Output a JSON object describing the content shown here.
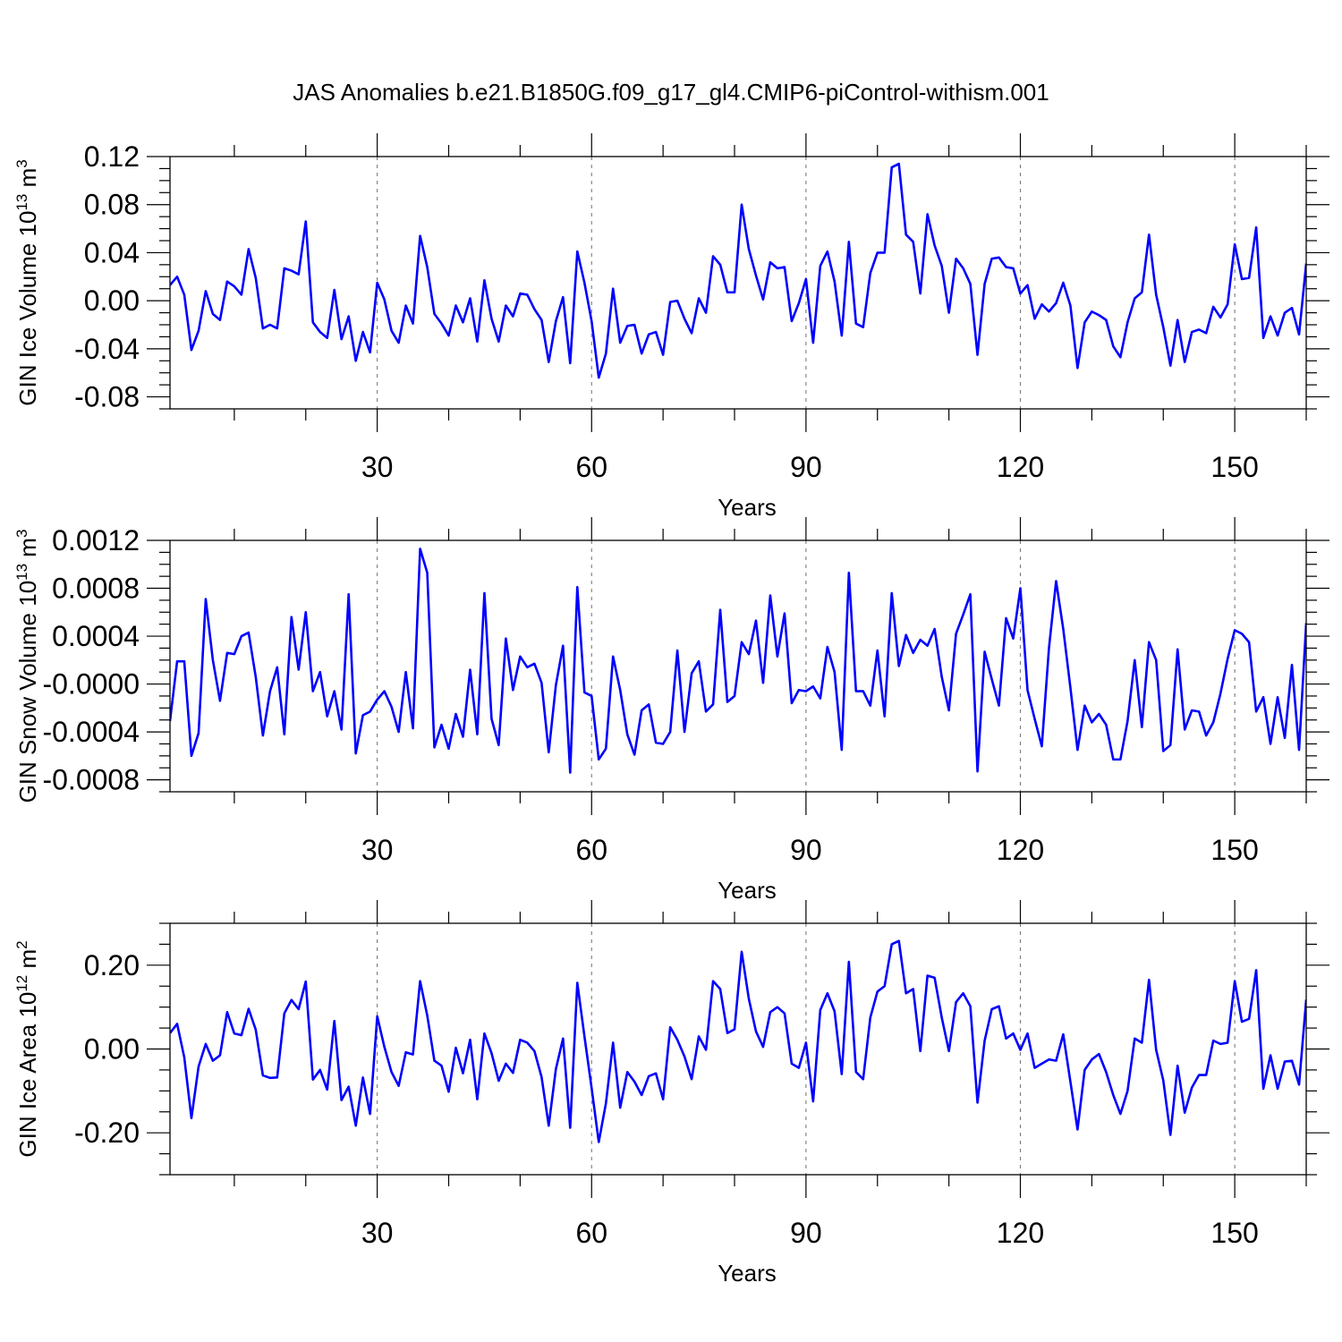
{
  "title": "JAS Anomalies b.e21.B1850G.f09_g17_gl4.CMIP6-piControl-withism.001",
  "colors": {
    "line": "#0000ff",
    "grid": "#7a7a7a"
  },
  "chart_data": [
    {
      "type": "line",
      "ylabel": "GIN Ice Volume 10",
      "ylabel_sup": "13",
      "ylabel_unit": " m",
      "ylabel_unit_sup": "3",
      "xlabel": "Years",
      "xlim": [
        1,
        160
      ],
      "ylim": [
        -0.09,
        0.12
      ],
      "xticks": [
        30,
        60,
        90,
        120,
        150
      ],
      "xtick_labels": [
        "30",
        "60",
        "90",
        "120",
        "150"
      ],
      "yticks": [
        -0.08,
        -0.04,
        0.0,
        0.04,
        0.08,
        0.12
      ],
      "ytick_labels": [
        "-0.08",
        "-0.04",
        "0.00",
        "0.04",
        "0.08",
        "0.12"
      ],
      "grid": "vertical dashed at major x ticks",
      "series": [
        {
          "values": [
            0.013,
            0.02,
            0.005,
            -0.041,
            -0.025,
            0.008,
            -0.011,
            -0.016,
            0.016,
            0.012,
            0.005,
            0.043,
            0.019,
            -0.023,
            -0.02,
            -0.023,
            0.027,
            0.025,
            0.022,
            0.066,
            -0.018,
            -0.026,
            -0.031,
            0.009,
            -0.032,
            -0.013,
            -0.05,
            -0.026,
            -0.043,
            0.015,
            0.001,
            -0.025,
            -0.035,
            -0.004,
            -0.019,
            0.054,
            0.028,
            -0.011,
            -0.019,
            -0.029,
            -0.004,
            -0.018,
            0.002,
            -0.034,
            0.017,
            -0.015,
            -0.034,
            -0.004,
            -0.013,
            0.006,
            0.005,
            -0.007,
            -0.016,
            -0.051,
            -0.017,
            0.003,
            -0.052,
            0.041,
            0.015,
            -0.017,
            -0.064,
            -0.044,
            0.01,
            -0.035,
            -0.021,
            -0.02,
            -0.044,
            -0.028,
            -0.026,
            -0.045,
            -0.001,
            0.0,
            -0.015,
            -0.027,
            0.002,
            -0.01,
            0.037,
            0.03,
            0.007,
            0.007,
            0.08,
            0.043,
            0.021,
            0.001,
            0.032,
            0.027,
            0.028,
            -0.017,
            -0.002,
            0.018,
            -0.035,
            0.029,
            0.041,
            0.016,
            -0.029,
            0.049,
            -0.019,
            -0.022,
            0.023,
            0.04,
            0.04,
            0.111,
            0.114,
            0.055,
            0.049,
            0.006,
            0.072,
            0.046,
            0.029,
            -0.01,
            0.035,
            0.027,
            0.014,
            -0.045,
            0.014,
            0.035,
            0.036,
            0.028,
            0.027,
            0.006,
            0.013,
            -0.015,
            -0.003,
            -0.009,
            -0.002,
            0.015,
            -0.004,
            -0.056,
            -0.018,
            -0.009,
            -0.012,
            -0.016,
            -0.038,
            -0.047,
            -0.018,
            0.002,
            0.007,
            0.055,
            0.005,
            -0.022,
            -0.054,
            -0.016,
            -0.051,
            -0.026,
            -0.024,
            -0.027,
            -0.005,
            -0.014,
            -0.003,
            0.047,
            0.018,
            0.019,
            0.061,
            -0.031,
            -0.013,
            -0.029,
            -0.01,
            -0.006,
            -0.028,
            0.031
          ]
        }
      ]
    },
    {
      "type": "line",
      "ylabel": "GIN Snow Volume 10",
      "ylabel_sup": "13",
      "ylabel_unit": " m",
      "ylabel_unit_sup": "3",
      "xlabel": "Years",
      "xlim": [
        1,
        160
      ],
      "ylim": [
        -0.0009,
        0.0012
      ],
      "xticks": [
        30,
        60,
        90,
        120,
        150
      ],
      "xtick_labels": [
        "30",
        "60",
        "90",
        "120",
        "150"
      ],
      "yticks": [
        -0.0008,
        -0.0004,
        0.0,
        0.0004,
        0.0008,
        0.0012
      ],
      "ytick_labels": [
        "-0.0008",
        "-0.0004",
        "-0.0000",
        "0.0004",
        "0.0008",
        "0.0012"
      ],
      "grid": "vertical dashed at major x ticks",
      "series": [
        {
          "values": [
            -0.00031,
            0.00019,
            0.00019,
            -0.0006,
            -0.00041,
            0.00071,
            0.0002,
            -0.00014,
            0.00026,
            0.00025,
            0.0004,
            0.00043,
            6e-05,
            -0.00043,
            -6e-05,
            0.00014,
            -0.00042,
            0.00056,
            0.00012,
            0.0006,
            -6e-05,
            0.0001,
            -0.00027,
            -6e-05,
            -0.00038,
            0.00075,
            -0.00058,
            -0.00026,
            -0.00023,
            -0.00013,
            -6e-05,
            -0.00019,
            -0.0004,
            0.0001,
            -0.00037,
            0.00113,
            0.00093,
            -0.00053,
            -0.00034,
            -0.00054,
            -0.00025,
            -0.00044,
            0.00012,
            -0.00042,
            0.00076,
            -0.00029,
            -0.00051,
            0.00038,
            -5e-05,
            0.00023,
            0.00014,
            0.00017,
            1e-05,
            -0.00057,
            -1e-05,
            0.00032,
            -0.00074,
            0.00081,
            -7e-05,
            -0.0001,
            -0.00063,
            -0.00054,
            0.00023,
            -5e-05,
            -0.00042,
            -0.00059,
            -0.00022,
            -0.00017,
            -0.00049,
            -0.0005,
            -0.0004,
            0.00028,
            -0.0004,
            9e-05,
            0.00019,
            -0.00023,
            -0.00017,
            0.00062,
            -0.00015,
            -0.0001,
            0.00035,
            0.00025,
            0.00053,
            1e-05,
            0.00074,
            0.00023,
            0.00059,
            -0.00016,
            -5e-05,
            -6e-05,
            -2e-05,
            -0.00012,
            0.00031,
            0.0001,
            -0.00055,
            0.00093,
            -6e-05,
            -6e-05,
            -0.00018,
            0.00028,
            -0.00027,
            0.00076,
            0.00015,
            0.00041,
            0.00026,
            0.00037,
            0.00032,
            0.00046,
            6e-05,
            -0.00022,
            0.00042,
            0.00058,
            0.00075,
            -0.00073,
            0.00027,
            4e-05,
            -0.00018,
            0.00055,
            0.00038,
            0.0008,
            -5e-05,
            -0.00029,
            -0.00052,
            0.0003,
            0.00086,
            0.00046,
            -3e-05,
            -0.00055,
            -0.00018,
            -0.00032,
            -0.00025,
            -0.00034,
            -0.00063,
            -0.00063,
            -0.00031,
            0.0002,
            -0.00036,
            0.00035,
            0.0002,
            -0.00056,
            -0.00051,
            0.00029,
            -0.00038,
            -0.00022,
            -0.00023,
            -0.00043,
            -0.00032,
            -8e-05,
            0.00021,
            0.00045,
            0.00042,
            0.00035,
            -0.00023,
            -0.00011,
            -0.0005,
            -0.00011,
            -0.00045,
            0.00016,
            -0.00055,
            0.00051
          ]
        }
      ]
    },
    {
      "type": "line",
      "ylabel": "GIN Ice Area 10",
      "ylabel_sup": "12",
      "ylabel_unit": " m",
      "ylabel_unit_sup": "2",
      "xlabel": "Years",
      "xlim": [
        1,
        160
      ],
      "ylim": [
        -0.3,
        0.3
      ],
      "xticks": [
        30,
        60,
        90,
        120,
        150
      ],
      "xtick_labels": [
        "30",
        "60",
        "90",
        "120",
        "150"
      ],
      "yticks": [
        -0.2,
        0.0,
        0.2
      ],
      "ytick_labels": [
        "-0.20",
        "0.00",
        "0.20"
      ],
      "grid": "vertical dashed at major x ticks",
      "series": [
        {
          "values": [
            0.038,
            0.06,
            -0.02,
            -0.165,
            -0.042,
            0.012,
            -0.028,
            -0.015,
            0.088,
            0.037,
            0.033,
            0.096,
            0.046,
            -0.063,
            -0.069,
            -0.068,
            0.085,
            0.117,
            0.095,
            0.161,
            -0.073,
            -0.05,
            -0.097,
            0.067,
            -0.122,
            -0.09,
            -0.183,
            -0.068,
            -0.155,
            0.078,
            0.005,
            -0.055,
            -0.088,
            -0.008,
            -0.013,
            0.162,
            0.08,
            -0.028,
            -0.04,
            -0.102,
            0.003,
            -0.058,
            0.022,
            -0.12,
            0.037,
            -0.01,
            -0.076,
            -0.035,
            -0.057,
            0.022,
            0.015,
            -0.005,
            -0.067,
            -0.183,
            -0.048,
            0.025,
            -0.188,
            0.158,
            0.03,
            -0.093,
            -0.222,
            -0.13,
            0.015,
            -0.14,
            -0.055,
            -0.078,
            -0.11,
            -0.065,
            -0.058,
            -0.12,
            0.052,
            0.022,
            -0.018,
            -0.072,
            0.03,
            -0.002,
            0.162,
            0.143,
            0.038,
            0.047,
            0.232,
            0.12,
            0.042,
            0.005,
            0.088,
            0.1,
            0.085,
            -0.035,
            -0.045,
            0.015,
            -0.125,
            0.093,
            0.133,
            0.09,
            -0.06,
            0.208,
            -0.055,
            -0.072,
            0.075,
            0.137,
            0.15,
            0.25,
            0.258,
            0.133,
            0.143,
            -0.005,
            0.175,
            0.17,
            0.075,
            -0.005,
            0.112,
            0.133,
            0.102,
            -0.128,
            0.02,
            0.095,
            0.102,
            0.025,
            0.037,
            -0.002,
            0.037,
            -0.045,
            -0.035,
            -0.025,
            -0.028,
            0.035,
            -0.078,
            -0.192,
            -0.05,
            -0.025,
            -0.012,
            -0.055,
            -0.11,
            -0.155,
            -0.1,
            0.025,
            0.015,
            0.165,
            -0.002,
            -0.075,
            -0.205,
            -0.04,
            -0.152,
            -0.092,
            -0.062,
            -0.062,
            0.02,
            0.012,
            0.015,
            0.162,
            0.065,
            0.072,
            0.188,
            -0.095,
            -0.015,
            -0.095,
            -0.03,
            -0.028,
            -0.085,
            0.118
          ]
        }
      ]
    }
  ]
}
